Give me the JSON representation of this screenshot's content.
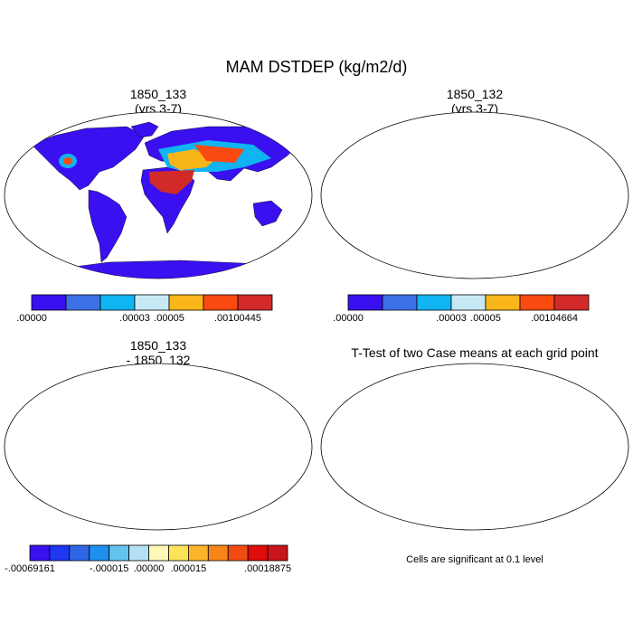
{
  "figure": {
    "title": "MAM DSTDEP (kg/m2/d)"
  },
  "panels": [
    {
      "id": "p1",
      "title_line1": "1850_133",
      "title_line2": "(yrs 3-7)",
      "variable": "dust deposition"
    },
    {
      "id": "p2",
      "title_line1": "1850_132",
      "title_line2": "(yrs 3-7)",
      "variable": "dust deposition"
    },
    {
      "id": "p3",
      "title_line1": "1850_133",
      "title_line2": "- 1850_132",
      "variable": "difference"
    },
    {
      "id": "p4",
      "title_line1": "T-Test of two Case means at each grid point",
      "title_line2": "",
      "variable": "significance"
    }
  ],
  "colorbars": {
    "cb1": {
      "colors": [
        "#3a10f0",
        "#3c71e6",
        "#10b4f0",
        "#c7e9f4",
        "#f8b619",
        "#fb4a0f",
        "#d22a28"
      ],
      "labels": [
        ".00000",
        ".00003",
        ".00005",
        ".00100445"
      ],
      "label_boundaries": [
        0,
        3,
        4,
        6
      ]
    },
    "cb2": {
      "colors": [
        "#3a10f0",
        "#3c71e6",
        "#10b4f0",
        "#c7e9f4",
        "#f8b619",
        "#fb4a0f",
        "#d22a28"
      ],
      "labels": [
        ".00000",
        ".00003",
        ".00005",
        ".00104664"
      ],
      "label_boundaries": [
        0,
        3,
        4,
        6
      ]
    },
    "cb3": {
      "colors": [
        "#3a10f0",
        "#1f37f0",
        "#2f66e8",
        "#1e90ee",
        "#62c4ee",
        "#b4e0f4",
        "#fdf8b8",
        "#fde25a",
        "#fcb42a",
        "#f78418",
        "#f04c10",
        "#e00b0b",
        "#c8141a"
      ],
      "labels": [
        "-.00069161",
        "-.000015",
        ".00000",
        ".000015",
        ".00018875"
      ],
      "label_boundaries": [
        0,
        4,
        6,
        8,
        12
      ]
    }
  },
  "significance_note": "Cells are significant at 0.1 level",
  "colors": {
    "land_low": "#3a10f0",
    "land_mid": "#10b4f0",
    "land_high": "#d22a28",
    "diff_neutral": "#fdf8b8",
    "diff_ocean_tint": "#b4e0f4",
    "significant": "#ee0000"
  }
}
